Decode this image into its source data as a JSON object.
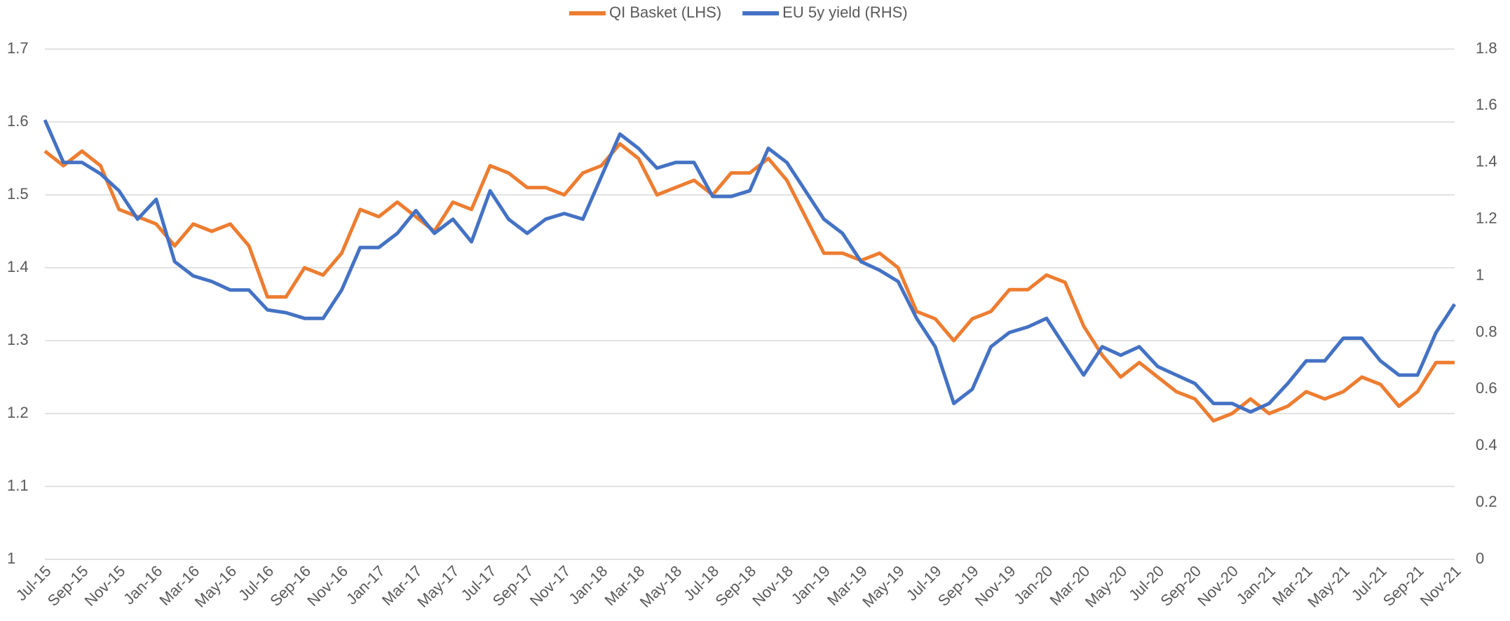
{
  "chart_data": {
    "type": "line",
    "categories": [
      "Jul-15",
      null,
      "Sep-15",
      null,
      "Nov-15",
      null,
      "Jan-16",
      null,
      "Mar-16",
      null,
      "May-16",
      null,
      "Jul-16",
      null,
      "Sep-16",
      null,
      "Nov-16",
      null,
      "Jan-17",
      null,
      "Mar-17",
      null,
      "May-17",
      null,
      "Jul-17",
      null,
      "Sep-17",
      null,
      "Nov-17",
      null,
      "Jan-18",
      null,
      "Mar-18",
      null,
      "May-18",
      null,
      "Jul-18",
      null,
      "Sep-18",
      null,
      "Nov-18",
      null,
      "Jan-19",
      null,
      "Mar-19",
      null,
      "May-19",
      null,
      "Jul-19",
      null,
      "Sep-19",
      null,
      "Nov-19",
      null,
      "Jan-20",
      null,
      "Mar-20",
      null,
      "May-20",
      null,
      "Jul-20",
      null,
      "Sep-20",
      null,
      "Nov-20",
      null,
      "Jan-21",
      null,
      "Mar-21",
      null,
      "May-21",
      null,
      "Jul-21",
      null,
      "Sep-21",
      null,
      "Nov-21"
    ],
    "series": [
      {
        "name": "QI Basket (LHS)",
        "color": "#ed7d31",
        "axis": "y",
        "values": [
          1.56,
          1.54,
          1.56,
          1.54,
          1.48,
          1.47,
          1.46,
          1.43,
          1.46,
          1.45,
          1.46,
          1.43,
          1.36,
          1.36,
          1.4,
          1.39,
          1.42,
          1.48,
          1.47,
          1.49,
          1.47,
          1.45,
          1.49,
          1.48,
          1.54,
          1.53,
          1.51,
          1.51,
          1.5,
          1.53,
          1.54,
          1.57,
          1.55,
          1.5,
          1.51,
          1.52,
          1.5,
          1.53,
          1.53,
          1.55,
          1.52,
          1.47,
          1.42,
          1.42,
          1.41,
          1.42,
          1.4,
          1.34,
          1.33,
          1.3,
          1.33,
          1.34,
          1.37,
          1.37,
          1.39,
          1.38,
          1.32,
          1.28,
          1.25,
          1.27,
          1.25,
          1.23,
          1.22,
          1.19,
          1.2,
          1.22,
          1.2,
          1.21,
          1.23,
          1.22,
          1.23,
          1.25,
          1.24,
          1.21,
          1.23,
          1.27,
          1.27
        ]
      },
      {
        "name": "EU 5y yield (RHS)",
        "color": "#4472c4",
        "axis": "y2",
        "values": [
          1.55,
          1.4,
          1.4,
          1.36,
          1.3,
          1.2,
          1.27,
          1.05,
          1.0,
          0.98,
          0.95,
          0.95,
          0.88,
          0.87,
          0.85,
          0.85,
          0.95,
          1.1,
          1.1,
          1.15,
          1.23,
          1.15,
          1.2,
          1.12,
          1.3,
          1.2,
          1.15,
          1.2,
          1.22,
          1.2,
          1.35,
          1.5,
          1.45,
          1.38,
          1.4,
          1.4,
          1.28,
          1.28,
          1.3,
          1.45,
          1.4,
          1.3,
          1.2,
          1.15,
          1.05,
          1.02,
          0.98,
          0.85,
          0.75,
          0.55,
          0.6,
          0.75,
          0.8,
          0.82,
          0.85,
          0.75,
          0.65,
          0.75,
          0.72,
          0.75,
          0.68,
          0.65,
          0.62,
          0.55,
          0.55,
          0.52,
          0.55,
          0.62,
          0.7,
          0.7,
          0.78,
          0.78,
          0.7,
          0.65,
          0.65,
          0.8,
          0.9
        ]
      }
    ],
    "ylim": [
      1,
      1.7
    ],
    "yticks": [
      1,
      1.1,
      1.2,
      1.3,
      1.4,
      1.5,
      1.6,
      1.7
    ],
    "y2lim": [
      0,
      1.8
    ],
    "y2ticks": [
      0,
      0.2,
      0.4,
      0.6,
      0.8,
      1,
      1.2,
      1.4,
      1.6,
      1.8
    ],
    "grid": true,
    "legend": "top"
  }
}
